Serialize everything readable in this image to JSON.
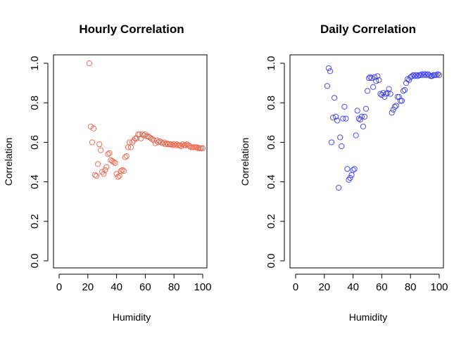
{
  "chart_data": [
    {
      "type": "scatter",
      "title": "Hourly Correlation",
      "xlabel": "Humidity",
      "ylabel": "Correlation",
      "xlim": [
        0,
        100
      ],
      "ylim": [
        0.0,
        1.0
      ],
      "x_ticks": [
        "0",
        "20",
        "40",
        "60",
        "80",
        "100"
      ],
      "y_ticks": [
        "0.0",
        "0.2",
        "0.4",
        "0.6",
        "0.8",
        "1.0"
      ],
      "grid": false,
      "color": "#E8624A",
      "series": [
        {
          "points": [
            [
              21,
              1.0
            ],
            [
              22,
              0.68
            ],
            [
              23,
              0.6
            ],
            [
              24,
              0.67
            ],
            [
              25,
              0.435
            ],
            [
              26,
              0.43
            ],
            [
              27,
              0.49
            ],
            [
              28,
              0.59
            ],
            [
              29,
              0.56
            ],
            [
              30,
              0.45
            ],
            [
              31,
              0.44
            ],
            [
              32,
              0.46
            ],
            [
              33,
              0.475
            ],
            [
              34,
              0.54
            ],
            [
              35,
              0.545
            ],
            [
              36,
              0.51
            ],
            [
              37,
              0.505
            ],
            [
              38,
              0.5
            ],
            [
              39,
              0.495
            ],
            [
              40,
              0.44
            ],
            [
              41,
              0.425
            ],
            [
              42,
              0.43
            ],
            [
              43,
              0.455
            ],
            [
              44,
              0.46
            ],
            [
              45,
              0.455
            ],
            [
              46,
              0.525
            ],
            [
              47,
              0.53
            ],
            [
              48,
              0.575
            ],
            [
              49,
              0.6
            ],
            [
              50,
              0.575
            ],
            [
              51,
              0.6
            ],
            [
              52,
              0.61
            ],
            [
              53,
              0.62
            ],
            [
              54,
              0.62
            ],
            [
              55,
              0.64
            ],
            [
              56,
              0.64
            ],
            [
              57,
              0.62
            ],
            [
              58,
              0.64
            ],
            [
              59,
              0.635
            ],
            [
              60,
              0.64
            ],
            [
              61,
              0.63
            ],
            [
              62,
              0.63
            ],
            [
              63,
              0.625
            ],
            [
              64,
              0.62
            ],
            [
              65,
              0.615
            ],
            [
              66,
              0.61
            ],
            [
              67,
              0.595
            ],
            [
              68,
              0.61
            ],
            [
              69,
              0.6
            ],
            [
              70,
              0.605
            ],
            [
              71,
              0.6
            ],
            [
              72,
              0.595
            ],
            [
              73,
              0.6
            ],
            [
              74,
              0.59
            ],
            [
              75,
              0.595
            ],
            [
              76,
              0.59
            ],
            [
              77,
              0.59
            ],
            [
              78,
              0.59
            ],
            [
              79,
              0.585
            ],
            [
              80,
              0.59
            ],
            [
              81,
              0.585
            ],
            [
              82,
              0.59
            ],
            [
              83,
              0.585
            ],
            [
              84,
              0.585
            ],
            [
              85,
              0.58
            ],
            [
              86,
              0.59
            ],
            [
              87,
              0.585
            ],
            [
              88,
              0.585
            ],
            [
              89,
              0.59
            ],
            [
              90,
              0.585
            ],
            [
              91,
              0.58
            ],
            [
              92,
              0.575
            ],
            [
              93,
              0.575
            ],
            [
              94,
              0.575
            ],
            [
              95,
              0.575
            ],
            [
              96,
              0.575
            ],
            [
              97,
              0.57
            ],
            [
              98,
              0.57
            ],
            [
              99,
              0.57
            ],
            [
              100,
              0.57
            ]
          ]
        }
      ]
    },
    {
      "type": "scatter",
      "title": "Daily Correlation",
      "xlabel": "Humidity",
      "ylabel": "Correlation",
      "xlim": [
        0,
        100
      ],
      "ylim": [
        0.0,
        1.0
      ],
      "x_ticks": [
        "0",
        "20",
        "40",
        "60",
        "80",
        "100"
      ],
      "y_ticks": [
        "0.0",
        "0.2",
        "0.4",
        "0.6",
        "0.8",
        "1.0"
      ],
      "grid": false,
      "color": "#3B3BF0",
      "series": [
        {
          "points": [
            [
              22,
              0.885
            ],
            [
              23,
              0.975
            ],
            [
              24,
              0.96
            ],
            [
              25,
              0.6
            ],
            [
              26,
              0.725
            ],
            [
              27,
              0.825
            ],
            [
              28,
              0.73
            ],
            [
              29,
              0.71
            ],
            [
              30,
              0.37
            ],
            [
              31,
              0.625
            ],
            [
              32,
              0.58
            ],
            [
              33,
              0.72
            ],
            [
              34,
              0.78
            ],
            [
              35,
              0.72
            ],
            [
              36,
              0.465
            ],
            [
              37,
              0.41
            ],
            [
              38,
              0.42
            ],
            [
              39,
              0.435
            ],
            [
              40,
              0.46
            ],
            [
              41,
              0.465
            ],
            [
              42,
              0.635
            ],
            [
              43,
              0.76
            ],
            [
              44,
              0.72
            ],
            [
              45,
              0.715
            ],
            [
              46,
              0.73
            ],
            [
              47,
              0.68
            ],
            [
              48,
              0.73
            ],
            [
              49,
              0.77
            ],
            [
              50,
              0.86
            ],
            [
              51,
              0.925
            ],
            [
              52,
              0.93
            ],
            [
              53,
              0.925
            ],
            [
              54,
              0.88
            ],
            [
              55,
              0.93
            ],
            [
              56,
              0.91
            ],
            [
              57,
              0.935
            ],
            [
              58,
              0.915
            ],
            [
              59,
              0.845
            ],
            [
              60,
              0.84
            ],
            [
              61,
              0.85
            ],
            [
              62,
              0.83
            ],
            [
              63,
              0.845
            ],
            [
              64,
              0.85
            ],
            [
              65,
              0.87
            ],
            [
              66,
              0.845
            ],
            [
              67,
              0.75
            ],
            [
              68,
              0.765
            ],
            [
              69,
              0.78
            ],
            [
              70,
              0.785
            ],
            [
              71,
              0.83
            ],
            [
              72,
              0.83
            ],
            [
              73,
              0.81
            ],
            [
              74,
              0.81
            ],
            [
              75,
              0.86
            ],
            [
              76,
              0.865
            ],
            [
              77,
              0.9
            ],
            [
              78,
              0.92
            ],
            [
              79,
              0.915
            ],
            [
              80,
              0.93
            ],
            [
              81,
              0.935
            ],
            [
              82,
              0.94
            ],
            [
              83,
              0.935
            ],
            [
              84,
              0.94
            ],
            [
              85,
              0.935
            ],
            [
              86,
              0.94
            ],
            [
              87,
              0.94
            ],
            [
              88,
              0.945
            ],
            [
              89,
              0.94
            ],
            [
              90,
              0.945
            ],
            [
              91,
              0.94
            ],
            [
              92,
              0.945
            ],
            [
              93,
              0.94
            ],
            [
              94,
              0.935
            ],
            [
              95,
              0.935
            ],
            [
              96,
              0.94
            ],
            [
              97,
              0.94
            ],
            [
              98,
              0.94
            ],
            [
              99,
              0.945
            ],
            [
              100,
              0.94
            ]
          ]
        }
      ]
    }
  ]
}
